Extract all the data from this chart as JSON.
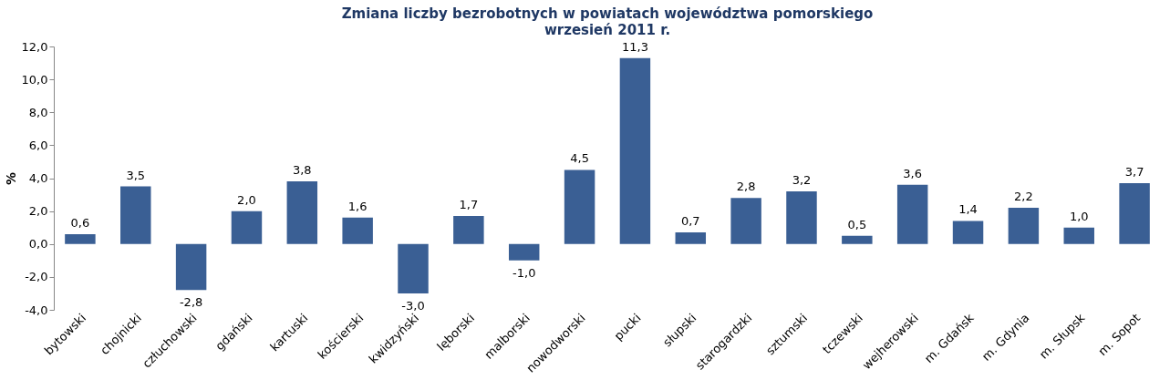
{
  "chart_data": {
    "type": "bar",
    "title": "Zmiana liczby bezrobotnych w powiatach województwa pomorskiego",
    "subtitle": "wrzesień 2011 r.",
    "ylabel": "%",
    "categories": [
      "bytowski",
      "chojnicki",
      "człuchowski",
      "gdański",
      "kartuski",
      "kościerski",
      "kwidzyński",
      "lęborski",
      "malborski",
      "nowodworski",
      "pucki",
      "słupski",
      "starogardzki",
      "sztumski",
      "tczewski",
      "wejherowski",
      "m. Gdańsk",
      "m. Gdynia",
      "m. Słupsk",
      "m. Sopot"
    ],
    "values": [
      0.6,
      3.5,
      -2.8,
      2.0,
      3.8,
      1.6,
      -3.0,
      1.7,
      -1.0,
      4.5,
      11.3,
      0.7,
      2.8,
      3.2,
      0.5,
      3.6,
      1.4,
      2.2,
      1.0,
      3.7
    ],
    "value_labels": [
      "0,6",
      "3,5",
      "-2,8",
      "2,0",
      "3,8",
      "1,6",
      "-3,0",
      "1,7",
      "-1,0",
      "4,5",
      "11,3",
      "0,7",
      "2,8",
      "3,2",
      "0,5",
      "3,6",
      "1,4",
      "2,2",
      "1,0",
      "3,7"
    ],
    "color": "#3a5f94",
    "ylim": [
      -4.0,
      12.0
    ],
    "yticks": [
      {
        "value": -4,
        "label": "-4,0"
      },
      {
        "value": -2,
        "label": "-2,0"
      },
      {
        "value": 0,
        "label": "0,0"
      },
      {
        "value": 2,
        "label": "2,0"
      },
      {
        "value": 4,
        "label": "4,0"
      },
      {
        "value": 6,
        "label": "6,0"
      },
      {
        "value": 8,
        "label": "8,0"
      },
      {
        "value": 10,
        "label": "10,0"
      },
      {
        "value": 12,
        "label": "12,0"
      }
    ],
    "grid": false
  }
}
